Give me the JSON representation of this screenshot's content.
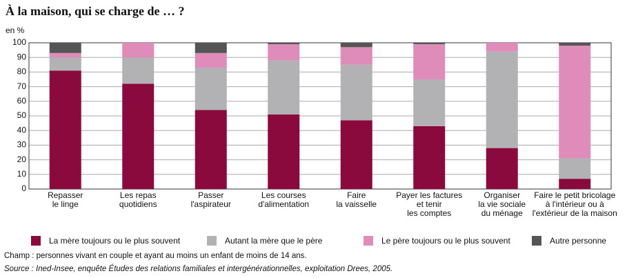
{
  "chart_data": {
    "type": "stacked_bar",
    "title": "À la maison, qui se charge de … ?",
    "ylabel": "en %",
    "categories": [
      "Repasser\nle linge",
      "Les repas\nquotidiens",
      "Passer\nl'aspirateur",
      "Les courses\nd'alimentation",
      "Faire\nla vaisselle",
      "Payer les factures\net tenir\nles comptes",
      "Organiser\nla vie sociale\ndu ménage",
      "Faire le petit bricolage\nà l'intérieur ou à\nl'extérieur de la maison"
    ],
    "series": [
      {
        "name": "La mère toujours ou le plus souvent",
        "color": "#8a0a3e",
        "values": [
          81,
          72,
          54,
          51,
          47,
          43,
          28,
          7
        ]
      },
      {
        "name": "Autant la mère que le père",
        "color": "#b2b2b4",
        "values": [
          9,
          18,
          29,
          37,
          38,
          32,
          66,
          14
        ]
      },
      {
        "name": "Le père toujours ou le plus souvent",
        "color": "#e08cba",
        "values": [
          3,
          10,
          10,
          11,
          12,
          24,
          6,
          77
        ]
      },
      {
        "name": "Autre personne",
        "color": "#555555",
        "values": [
          7,
          0,
          7,
          1,
          3,
          1,
          0,
          2
        ]
      }
    ],
    "ylim": [
      0,
      100
    ],
    "yticks": [
      0,
      10,
      20,
      30,
      40,
      50,
      60,
      70,
      80,
      90,
      100
    ],
    "grid": true,
    "legend": "bottom",
    "notes": [
      "Champ : personnes vivant en couple et ayant au moins un enfant de moins de 14 ans.",
      "Source :  Ined-Insee, enquête Études des relations familiales et intergénérationnelles, exploitation Drees, 2005."
    ]
  }
}
